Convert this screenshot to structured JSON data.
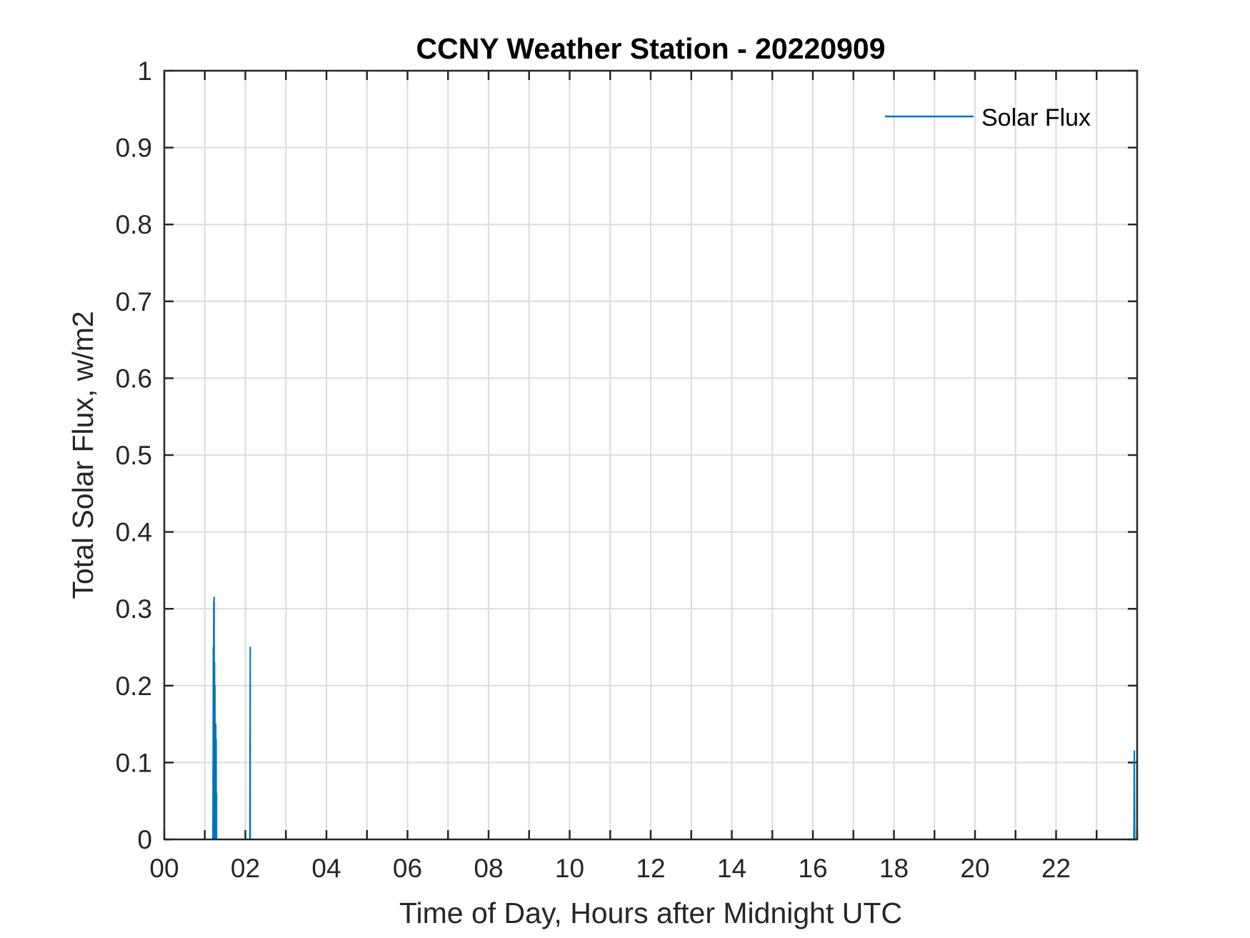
{
  "chart_data": {
    "type": "line",
    "title": "CCNY Weather Station - 20220909",
    "xlabel": "Time of Day, Hours after Midnight UTC",
    "ylabel": "Total Solar Flux, w/m2",
    "xlim": [
      0,
      24
    ],
    "ylim": [
      0,
      1
    ],
    "x_ticks": [
      0,
      2,
      4,
      6,
      8,
      10,
      12,
      14,
      16,
      18,
      20,
      22
    ],
    "x_tick_labels": [
      "00",
      "02",
      "04",
      "06",
      "08",
      "10",
      "12",
      "14",
      "16",
      "18",
      "20",
      "22"
    ],
    "x_grid_step": 1,
    "y_ticks": [
      0,
      0.1,
      0.2,
      0.3,
      0.4,
      0.5,
      0.6,
      0.7,
      0.8,
      0.9,
      1
    ],
    "y_tick_labels": [
      "0",
      "0.1",
      "0.2",
      "0.3",
      "0.4",
      "0.5",
      "0.6",
      "0.7",
      "0.8",
      "0.9",
      "1"
    ],
    "grid": true,
    "legend_position": "top-right",
    "color": "#0072bd",
    "series": [
      {
        "name": "Solar Flux",
        "x": [
          1.2,
          1.21,
          1.21,
          1.22,
          1.22,
          1.23,
          1.23,
          1.24,
          1.24,
          1.25,
          1.25,
          1.26,
          1.26,
          1.27,
          1.27,
          1.28,
          1.28,
          1.29,
          1.29,
          1.3,
          2.11,
          2.12,
          2.12,
          2.13,
          23.92,
          23.93,
          23.93,
          23.94
        ],
        "y": [
          0,
          0.25,
          0,
          0.31,
          0.26,
          0.315,
          0.21,
          0.23,
          0,
          0.2,
          0,
          0.15,
          0.14,
          0.15,
          0,
          0.13,
          0,
          0.06,
          0,
          0,
          0,
          0.25,
          0,
          0,
          0,
          0.115,
          0.1,
          0
        ]
      }
    ]
  }
}
